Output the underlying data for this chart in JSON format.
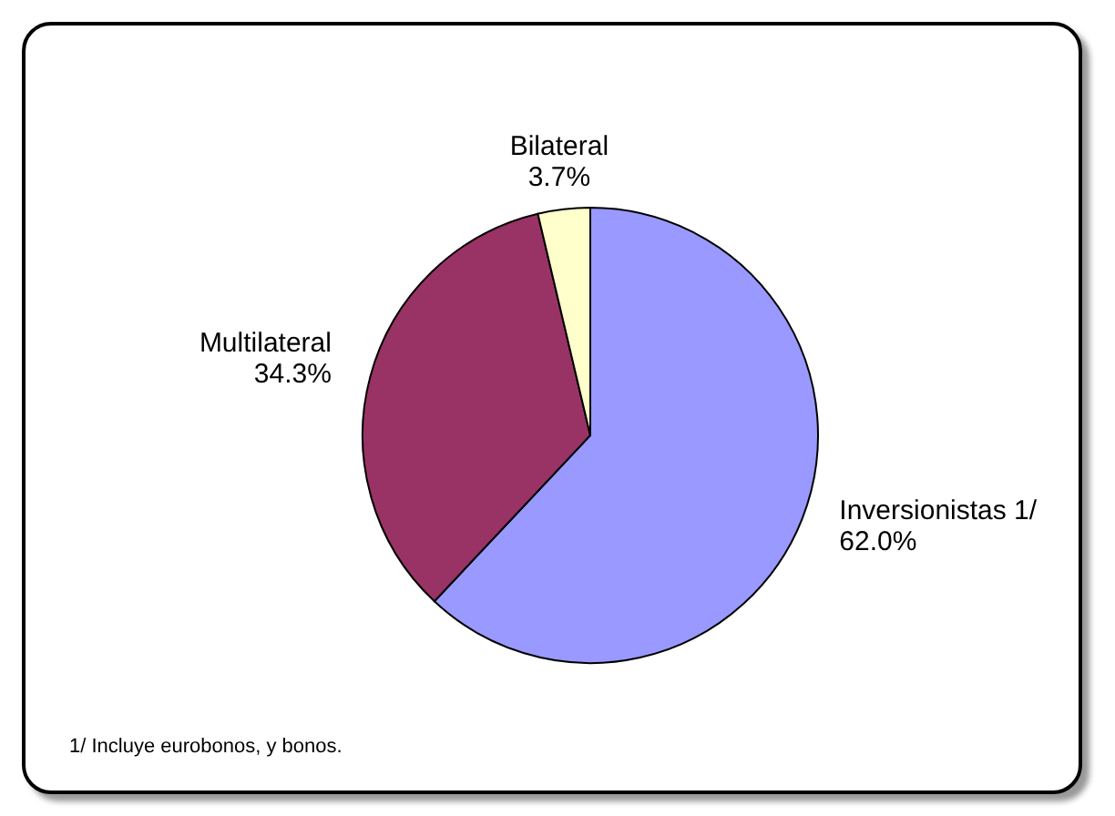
{
  "chart_data": {
    "type": "pie",
    "categories": [
      "Inversionistas 1/",
      "Multilateral",
      "Bilateral"
    ],
    "values": [
      62.0,
      34.3,
      3.7
    ],
    "colors": [
      "#9999ff",
      "#993366",
      "#ffffcc"
    ],
    "value_labels": [
      "62.0%",
      "34.3%",
      "3.7%"
    ],
    "legend": false,
    "annotations": [
      "1/ Incluye eurobonos, y bonos."
    ]
  }
}
